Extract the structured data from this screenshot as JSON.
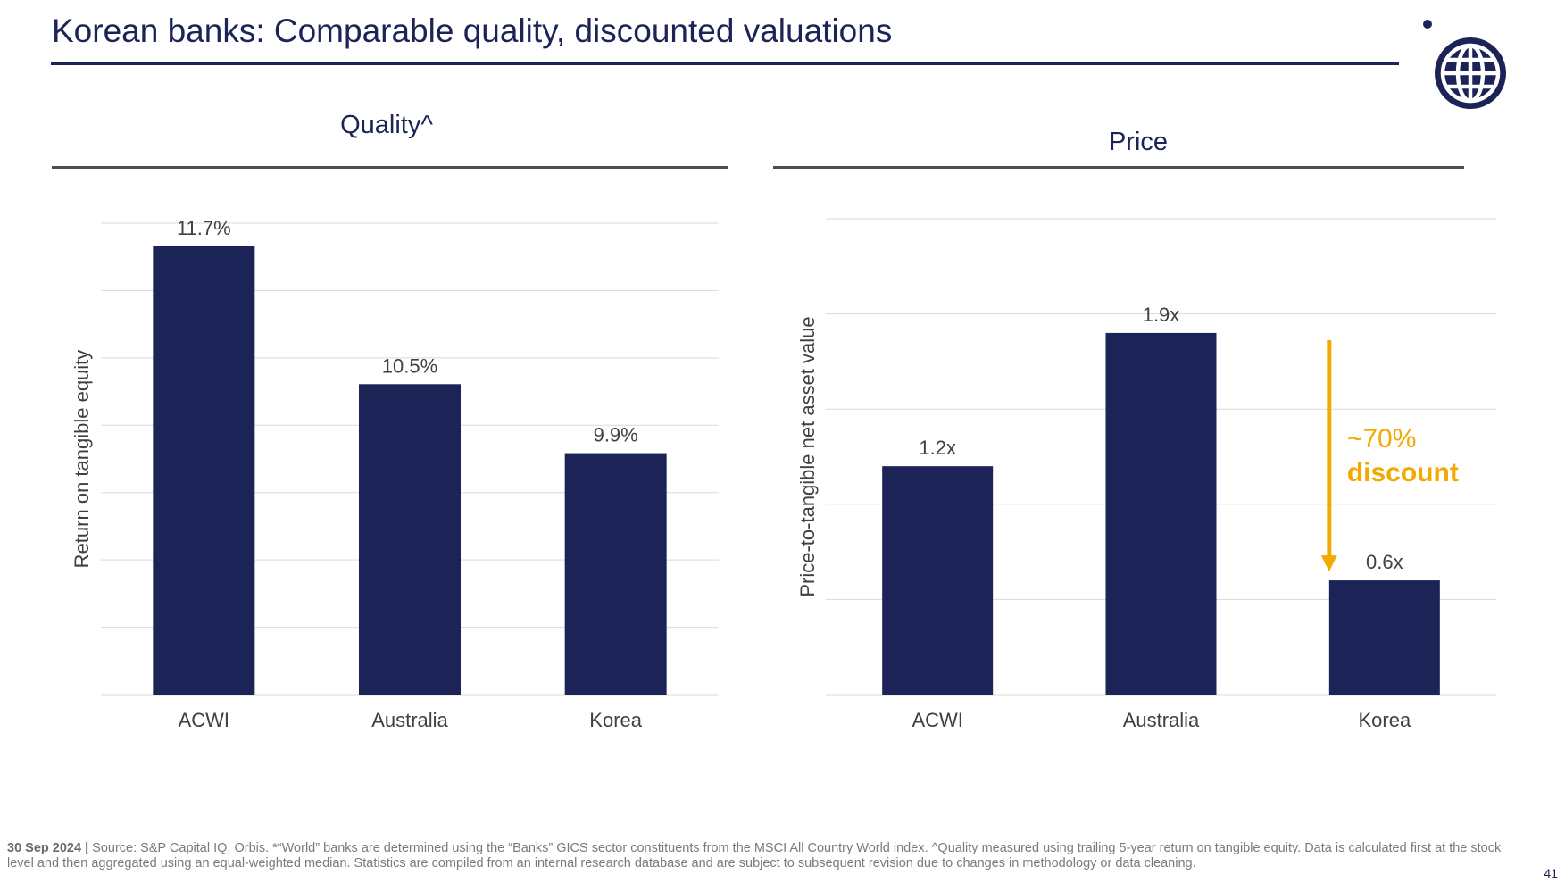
{
  "header": {
    "title": "Korean banks: Comparable quality, discounted valuations"
  },
  "colors": {
    "navy": "#1b2357",
    "accent": "#f2a900",
    "grid": "#d9d9d9",
    "rule": "#4d4d4d",
    "label": "#404040"
  },
  "icons": {
    "logo": "globe-icon"
  },
  "panels": {
    "quality": {
      "title": "Quality^"
    },
    "price": {
      "title": "Price"
    }
  },
  "chart_data": [
    {
      "type": "bar",
      "title": "Quality^",
      "categories": [
        "ACWI",
        "Australia",
        "Korea"
      ],
      "values": [
        11.7,
        10.5,
        9.9
      ],
      "labels": [
        "11.7%",
        "10.5%",
        "9.9%"
      ],
      "ylabel": "Return on tangible equity",
      "xlabel": "",
      "ylim": [
        7.8,
        11.9
      ],
      "grid": true,
      "legend": "none"
    },
    {
      "type": "bar",
      "title": "Price",
      "categories": [
        "ACWI",
        "Australia",
        "Korea"
      ],
      "values": [
        1.2,
        1.9,
        0.6
      ],
      "labels": [
        "1.2x",
        "1.9x",
        "0.6x"
      ],
      "ylabel": "Price-to-tangible net asset value",
      "xlabel": "",
      "ylim": [
        0,
        2.5
      ],
      "grid": true,
      "legend": "none",
      "annotation": {
        "text_line1": "~70%",
        "text_line2": "discount",
        "from": "Australia",
        "to": "Korea"
      }
    }
  ],
  "footer": {
    "date": "30 Sep 2024 |",
    "source": " Source: S&P Capital IQ, Orbis. *“World” banks are determined using the “Banks” GICS sector constituents from the MSCI All Country World index. ^Quality measured using trailing 5-year return on tangible equity. Data is calculated first at the stock level and then aggregated using an equal-weighted median. Statistics are compiled from an internal research database and are subject to subsequent revision due to changes in methodology or data cleaning.",
    "page_number": "41"
  }
}
